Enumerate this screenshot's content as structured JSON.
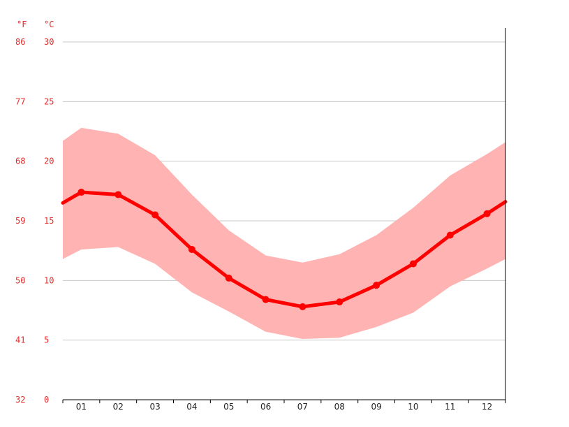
{
  "chart_data": {
    "type": "line",
    "title": "",
    "unit_labels": {
      "fahrenheit": "°F",
      "celsius": "°C"
    },
    "categories": [
      "01",
      "02",
      "03",
      "04",
      "05",
      "06",
      "07",
      "08",
      "09",
      "10",
      "11",
      "12"
    ],
    "series": [
      {
        "values": [
          17.4,
          17.2,
          15.5,
          12.6,
          10.2,
          8.4,
          7.8,
          8.2,
          9.6,
          11.4,
          13.8,
          15.6
        ]
      }
    ],
    "range": {
      "max": [
        22.8,
        22.3,
        20.5,
        17.2,
        14.2,
        12.1,
        11.5,
        12.2,
        13.8,
        16.1,
        18.8,
        20.6
      ],
      "min": [
        12.6,
        12.8,
        11.4,
        9.0,
        7.4,
        5.7,
        5.1,
        5.2,
        6.1,
        7.3,
        9.5,
        11.0
      ]
    },
    "edges": {
      "start": {
        "value": 16.5,
        "max": 21.7,
        "min": 11.8
      },
      "end": {
        "value": 16.6,
        "max": 21.6,
        "min": 11.8
      }
    },
    "y_ticks_celsius": [
      "0",
      "5",
      "10",
      "15",
      "20",
      "25",
      "30"
    ],
    "y_ticks_fahrenheit": [
      "32",
      "41",
      "50",
      "59",
      "68",
      "77",
      "86"
    ],
    "ylim": [
      0,
      30
    ],
    "grid": true,
    "colors": {
      "line": "#ff0000",
      "band": "#ffb3b3",
      "tick_text": "#e32b2b",
      "grid": "#c8c8c8"
    }
  }
}
